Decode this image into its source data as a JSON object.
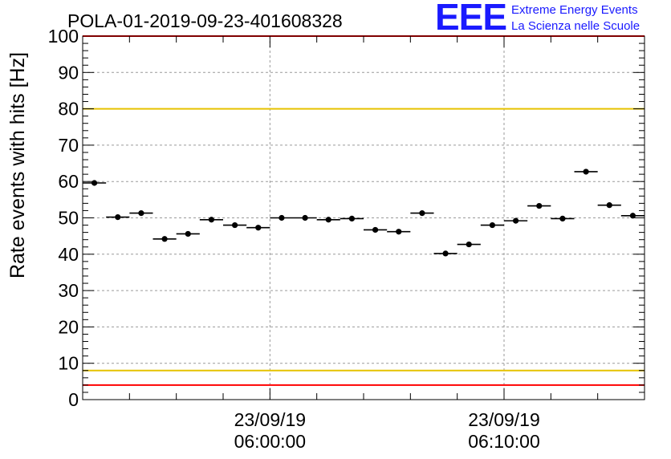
{
  "chart_data": {
    "type": "scatter",
    "title": "POLA-01-2019-09-23-401608328",
    "ylabel": "Rate events with hits [Hz]",
    "xlabel": "",
    "ylim": [
      0,
      100
    ],
    "yticks": [
      0,
      10,
      20,
      30,
      40,
      50,
      60,
      70,
      80,
      90,
      100
    ],
    "x_unit": "minutes (relative to 23/09/19 06:00:00)",
    "xlim": [
      -8.0,
      16.0
    ],
    "xticks": [
      {
        "x": 0,
        "date": "23/09/19",
        "time": "06:00:00"
      },
      {
        "x": 10,
        "date": "23/09/19",
        "time": "06:10:00"
      }
    ],
    "grid": true,
    "x_error": 0.5,
    "points": [
      {
        "x": -7.5,
        "y": 59.6
      },
      {
        "x": -6.5,
        "y": 50.2
      },
      {
        "x": -5.5,
        "y": 51.3
      },
      {
        "x": -4.5,
        "y": 44.2
      },
      {
        "x": -3.5,
        "y": 45.6
      },
      {
        "x": -2.5,
        "y": 49.5
      },
      {
        "x": -1.5,
        "y": 48.0
      },
      {
        "x": -0.5,
        "y": 47.3
      },
      {
        "x": 0.5,
        "y": 50.0
      },
      {
        "x": 1.5,
        "y": 50.0
      },
      {
        "x": 2.5,
        "y": 49.5
      },
      {
        "x": 3.5,
        "y": 49.8
      },
      {
        "x": 4.5,
        "y": 46.7
      },
      {
        "x": 5.5,
        "y": 46.2
      },
      {
        "x": 6.5,
        "y": 51.3
      },
      {
        "x": 7.5,
        "y": 40.2
      },
      {
        "x": 8.5,
        "y": 42.7
      },
      {
        "x": 9.5,
        "y": 48.0
      },
      {
        "x": 10.5,
        "y": 49.2
      },
      {
        "x": 11.5,
        "y": 53.3
      },
      {
        "x": 12.5,
        "y": 49.8
      },
      {
        "x": 13.5,
        "y": 62.7
      },
      {
        "x": 14.5,
        "y": 53.5
      },
      {
        "x": 15.5,
        "y": 50.6
      }
    ],
    "reference_lines": [
      {
        "y": 100,
        "color": "#ff0000"
      },
      {
        "y": 80,
        "color": "#e6c200"
      },
      {
        "y": 8,
        "color": "#e6c200"
      },
      {
        "y": 4,
        "color": "#ff0000"
      }
    ]
  },
  "logo": {
    "mark": "EEE",
    "line1": "Extreme Energy Events",
    "line2": "La Scienza nelle Scuole",
    "color": "#1a1aff"
  }
}
